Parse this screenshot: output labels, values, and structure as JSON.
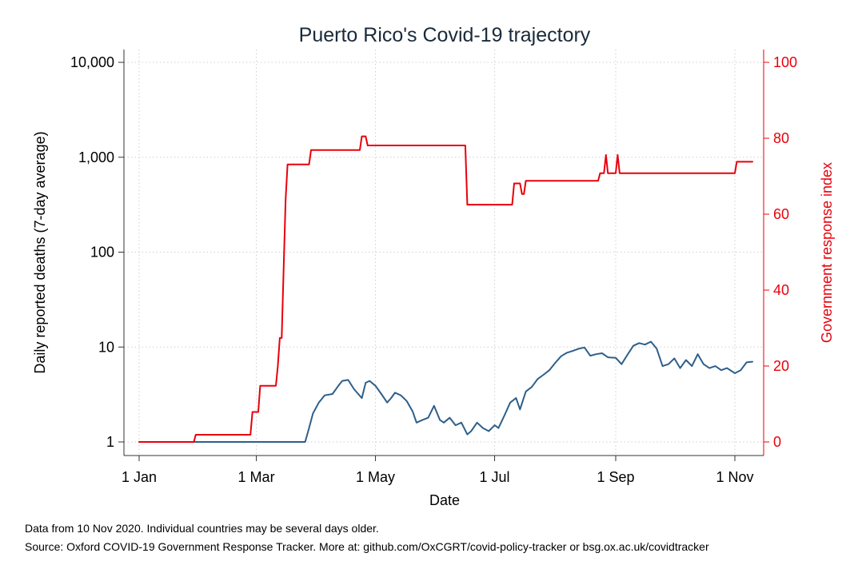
{
  "chart_data": {
    "type": "line",
    "title": "Puerto Rico's Covid-19 trajectory",
    "xlabel": "Date",
    "ylabel_left": "Daily reported deaths (7-day average)",
    "ylabel_right": "Government response index",
    "x_ticks": [
      "1 Jan",
      "1 Mar",
      "1 May",
      "1 Jul",
      "1 Sep",
      "1 Nov"
    ],
    "x_tick_days": [
      0,
      60,
      121,
      182,
      244,
      305
    ],
    "xlim_days": [
      0,
      314
    ],
    "y_left_scale": "log",
    "y_left_ticks": [
      "1",
      "10",
      "100",
      "1,000",
      "10,000"
    ],
    "y_left_tick_values": [
      1,
      10,
      100,
      1000,
      10000
    ],
    "ylim_left": [
      1,
      10000
    ],
    "y_right_ticks": [
      "0",
      "20",
      "40",
      "60",
      "80",
      "100"
    ],
    "y_right_tick_values": [
      0,
      20,
      40,
      60,
      80,
      100
    ],
    "ylim_right": [
      0,
      100
    ],
    "grid": true,
    "series": [
      {
        "axis": "left",
        "color": "#2e5f8a",
        "dates": [
          "1 Jan",
          "26 Mar",
          "28 Mar",
          "30 Mar",
          "2 Apr",
          "5 Apr",
          "9 Apr",
          "12 Apr",
          "14 Apr",
          "17 Apr",
          "20 Apr",
          "24 Apr",
          "26 Apr",
          "28 Apr",
          "1 May",
          "4 May",
          "7 May",
          "9 May",
          "11 May",
          "14 May",
          "17 May",
          "20 May",
          "22 May",
          "25 May",
          "28 May",
          "31 May",
          "3 Jun",
          "5 Jun",
          "8 Jun",
          "11 Jun",
          "14 Jun",
          "17 Jun",
          "19 Jun",
          "22 Jun",
          "25 Jun",
          "28 Jun",
          "1 Jul",
          "3 Jul",
          "6 Jul",
          "9 Jul",
          "12 Jul",
          "14 Jul",
          "17 Jul",
          "20 Jul",
          "23 Jul",
          "26 Jul",
          "29 Jul",
          "1 Aug",
          "4 Aug",
          "7 Aug",
          "10 Aug",
          "13 Aug",
          "16 Aug",
          "19 Aug",
          "22 Aug",
          "25 Aug",
          "28 Aug",
          "1 Sep",
          "4 Sep",
          "7 Sep",
          "10 Sep",
          "13 Sep",
          "16 Sep",
          "19 Sep",
          "22 Sep",
          "25 Sep",
          "28 Sep",
          "1 Oct",
          "4 Oct",
          "7 Oct",
          "10 Oct",
          "13 Oct",
          "16 Oct",
          "19 Oct",
          "22 Oct",
          "25 Oct",
          "28 Oct",
          "1 Nov",
          "4 Nov",
          "7 Nov",
          "10 Nov"
        ],
        "x": [
          0,
          85,
          87,
          89,
          92,
          95,
          99,
          102,
          104,
          107,
          110,
          114,
          116,
          118,
          121,
          124,
          127,
          129,
          131,
          134,
          137,
          140,
          142,
          145,
          148,
          151,
          154,
          156,
          159,
          162,
          165,
          168,
          170,
          173,
          176,
          179,
          182,
          184,
          187,
          190,
          193,
          195,
          198,
          201,
          204,
          207,
          210,
          213,
          216,
          219,
          222,
          225,
          228,
          231,
          234,
          237,
          240,
          244,
          247,
          250,
          253,
          256,
          259,
          262,
          265,
          268,
          271,
          274,
          277,
          280,
          283,
          286,
          289,
          292,
          295,
          298,
          301,
          305,
          308,
          311,
          314
        ],
        "y": [
          1,
          1,
          1.4,
          2.0,
          2.6,
          3.1,
          3.2,
          3.9,
          4.4,
          4.5,
          3.6,
          2.9,
          4.2,
          4.4,
          3.9,
          3.2,
          2.6,
          2.9,
          3.3,
          3.1,
          2.7,
          2.1,
          1.6,
          1.7,
          1.8,
          2.4,
          1.7,
          1.6,
          1.8,
          1.5,
          1.6,
          1.2,
          1.3,
          1.6,
          1.4,
          1.3,
          1.5,
          1.4,
          1.9,
          2.6,
          2.9,
          2.2,
          3.4,
          3.8,
          4.6,
          5.1,
          5.7,
          6.8,
          8.0,
          8.7,
          9.1,
          9.6,
          9.9,
          8.1,
          8.4,
          8.6,
          7.8,
          7.7,
          6.6,
          8.3,
          10.3,
          11.0,
          10.6,
          11.4,
          9.6,
          6.3,
          6.6,
          7.6,
          6.0,
          7.3,
          6.3,
          8.4,
          6.6,
          6.0,
          6.3,
          5.7,
          6.0,
          5.3,
          5.7,
          6.9,
          7.0
        ]
      },
      {
        "axis": "right",
        "color": "#e8000b",
        "dates": [
          "1 Jan",
          "29 Jan",
          "30 Jan",
          "27 Feb",
          "28 Feb",
          "2 Mar",
          "3 Mar",
          "11 Mar",
          "12 Mar",
          "13 Mar",
          "14 Mar",
          "15 Mar",
          "16 Mar",
          "17 Mar",
          "28 Mar",
          "29 Mar",
          "23 Apr",
          "24 Apr",
          "26 Apr",
          "27 Apr",
          "16 Jun",
          "17 Jun",
          "10 Jul",
          "11 Jul",
          "14 Jul",
          "15 Jul",
          "16 Jul",
          "17 Jul",
          "18 Jul",
          "23 Aug",
          "24 Aug",
          "26 Aug",
          "27 Aug",
          "28 Aug",
          "1 Sep",
          "2 Sep",
          "3 Sep",
          "1 Nov",
          "2 Nov",
          "10 Nov"
        ],
        "x": [
          0,
          28,
          29,
          57,
          58,
          61,
          62,
          70,
          71,
          72,
          73,
          74,
          75,
          76,
          87,
          88,
          113,
          114,
          116,
          117,
          167,
          168,
          191,
          192,
          195,
          196,
          197,
          198,
          199,
          235,
          236,
          238,
          239,
          240,
          244,
          245,
          246,
          305,
          306,
          314
        ],
        "y": [
          0,
          0,
          1.9,
          1.9,
          7.9,
          7.9,
          14.8,
          14.8,
          19.9,
          27.4,
          27.4,
          46.3,
          63.9,
          73.1,
          73.1,
          76.9,
          76.9,
          80.5,
          80.5,
          78.1,
          78.1,
          62.5,
          62.5,
          68.1,
          68.1,
          65.3,
          65.3,
          68.8,
          68.8,
          68.8,
          70.8,
          70.8,
          75.6,
          70.8,
          70.8,
          75.6,
          70.8,
          70.8,
          73.8,
          73.8
        ]
      }
    ]
  },
  "footnotes": {
    "line1": "Data from 10 Nov 2020. Individual countries may be several days older.",
    "line2": "Source: Oxford COVID-19 Government Response Tracker. More at: github.com/OxCGRT/covid-policy-tracker or bsg.ox.ac.uk/covidtracker"
  }
}
